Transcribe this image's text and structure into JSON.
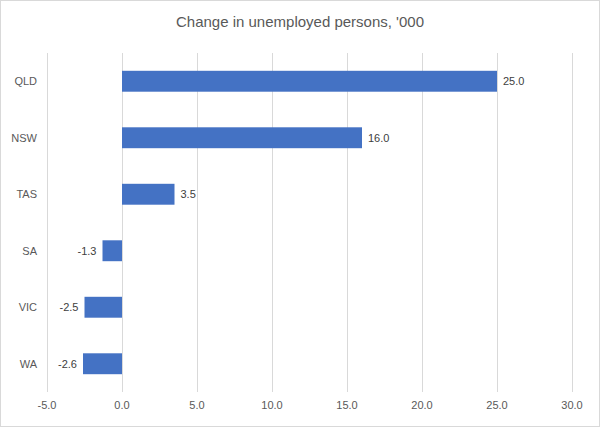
{
  "chart_data": {
    "type": "bar",
    "orientation": "horizontal",
    "title": "Change in unemployed persons, '000",
    "categories": [
      "QLD",
      "NSW",
      "TAS",
      "SA",
      "VIC",
      "WA"
    ],
    "values": [
      25.0,
      16.0,
      3.5,
      -1.3,
      -2.5,
      -2.6
    ],
    "value_labels": [
      "25.0",
      "16.0",
      "3.5",
      "-1.3",
      "-2.5",
      "-2.6"
    ],
    "color": "#4472c4",
    "xlim": [
      -5,
      30
    ],
    "xticks": [
      {
        "value": -5,
        "label": "-5.0"
      },
      {
        "value": 0,
        "label": "0.0"
      },
      {
        "value": 5,
        "label": "5.0"
      },
      {
        "value": 10,
        "label": "10.0"
      },
      {
        "value": 15,
        "label": "15.0"
      },
      {
        "value": 20,
        "label": "20.0"
      },
      {
        "value": 25,
        "label": "25.0"
      },
      {
        "value": 30,
        "label": "30.0"
      }
    ],
    "grid": true,
    "data_labels": true
  }
}
